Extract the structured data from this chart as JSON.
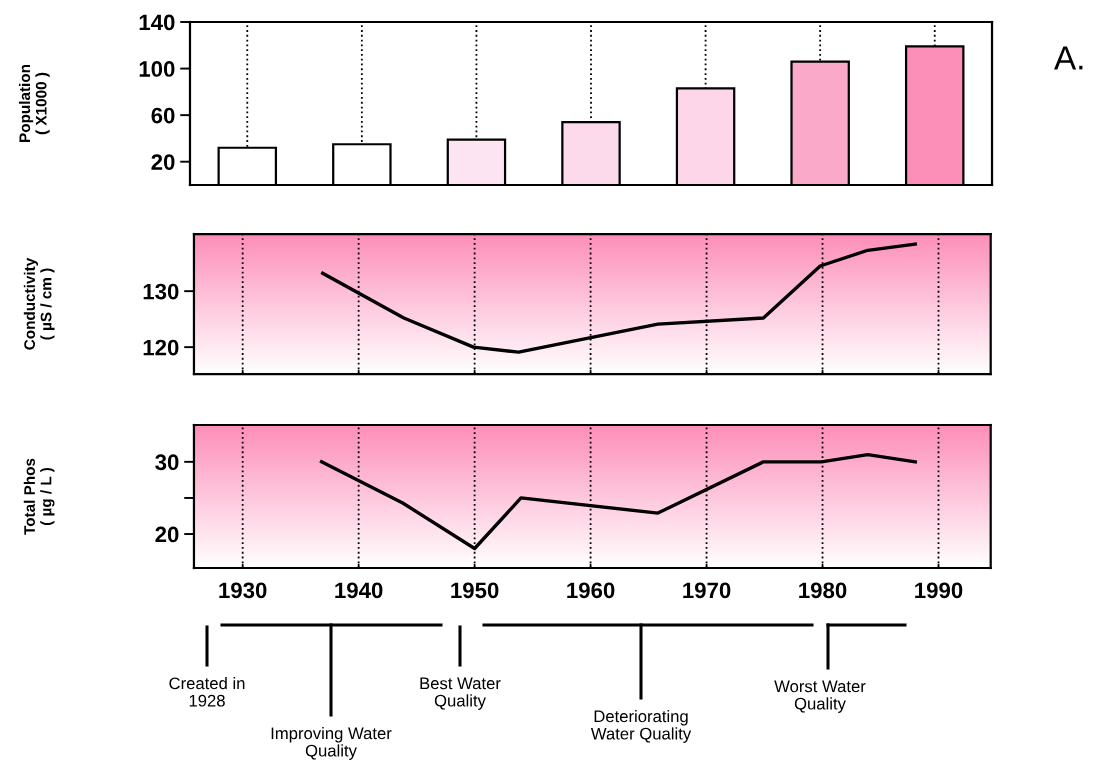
{
  "chart_data": [
    {
      "type": "bar",
      "ylabel": "Population\n( X1000 )",
      "categories": [
        null,
        null,
        null,
        null,
        null,
        null,
        null
      ],
      "values": [
        32,
        35,
        39,
        54,
        83,
        106,
        119
      ],
      "colors": [
        "#ffffff",
        "#ffffff",
        "#fde4f2",
        "#fdd9ec",
        "#fdd6ea",
        "#fba9c8",
        "#fb8fb8"
      ],
      "ylim": [
        0,
        140
      ],
      "yticks": [
        20,
        60,
        100,
        140
      ],
      "grid": "x",
      "tick_labels": "y",
      "annotations": [
        "A."
      ]
    },
    {
      "type": "line",
      "ylabel": "Conductivity\n( µS / cm )",
      "x": [
        1936.9,
        1943.9,
        1949.9,
        1953.8,
        1965.8,
        1974.9,
        1979.8,
        1983.9,
        1988.0
      ],
      "values": [
        133.2,
        125.2,
        120,
        119.1,
        124.1,
        125.2,
        134.5,
        137.3,
        138.4
      ],
      "color": "#000000",
      "xlim": [
        1925.8,
        1994.5
      ],
      "xticks": [
        1930,
        1940,
        1950,
        1960,
        1970,
        1980,
        1990
      ],
      "ylim": [
        115.2,
        140.2
      ],
      "yticks": [
        120,
        130
      ],
      "grid": "x",
      "tick_labels": "y"
    },
    {
      "type": "line",
      "ylabel": "Total Phos\n( µg / L )",
      "x": [
        1936.8,
        1943.8,
        1950.0,
        1954.0,
        1965.8,
        1974.9,
        1979.9,
        1983.9,
        1988.0
      ],
      "values": [
        30,
        24.3,
        18,
        25,
        22.9,
        30,
        30,
        31,
        30
      ],
      "color": "#000000",
      "xlim": [
        1925.8,
        1994.5
      ],
      "xticks": [
        1930,
        1940,
        1950,
        1960,
        1970,
        1980,
        1990
      ],
      "ylim": [
        15.3,
        35.1
      ],
      "yticks": [
        20,
        {
          "value": 25,
          "label": null
        },
        30
      ],
      "grid": "x",
      "annotations": [
        "Created in\n1928",
        "Improving Water\nQuality",
        "Best Water\nQuality",
        "Deteriorating\nWater Quality",
        "Worst Water\nQuality"
      ]
    }
  ]
}
